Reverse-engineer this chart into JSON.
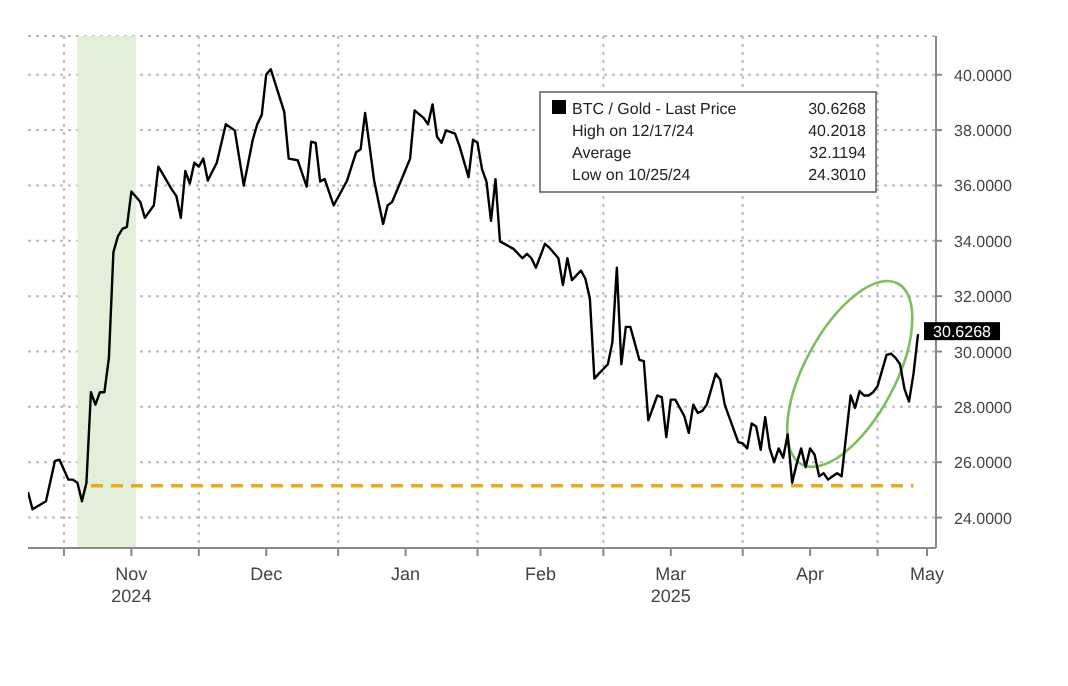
{
  "chart_data": {
    "type": "line",
    "x": [
      "2024-10-24",
      "2024-10-25",
      "2024-10-28",
      "2024-10-30",
      "2024-10-31",
      "2024-11-02",
      "2024-11-03",
      "2024-11-04",
      "2024-11-05",
      "2024-11-06",
      "2024-11-07",
      "2024-11-08",
      "2024-11-09",
      "2024-11-10",
      "2024-11-11",
      "2024-11-12",
      "2024-11-13",
      "2024-11-14",
      "2024-11-15",
      "2024-11-16",
      "2024-11-18",
      "2024-11-19",
      "2024-11-20",
      "2024-11-21",
      "2024-11-22",
      "2024-11-23",
      "2024-11-25",
      "2024-11-26",
      "2024-11-27",
      "2024-11-28",
      "2024-11-29",
      "2024-11-30",
      "2024-12-01",
      "2024-12-02",
      "2024-12-03",
      "2024-12-05",
      "2024-12-07",
      "2024-12-09",
      "2024-12-11",
      "2024-12-13",
      "2024-12-14",
      "2024-12-15",
      "2024-12-16",
      "2024-12-17",
      "2024-12-20",
      "2024-12-21",
      "2024-12-23",
      "2024-12-25",
      "2024-12-26",
      "2024-12-27",
      "2024-12-28",
      "2024-12-29",
      "2024-12-31",
      "2025-01-03",
      "2025-01-05",
      "2025-01-06",
      "2025-01-07",
      "2025-01-09",
      "2025-01-11",
      "2025-01-12",
      "2025-01-13",
      "2025-01-15",
      "2025-01-17",
      "2025-01-18",
      "2025-01-20",
      "2025-01-21",
      "2025-01-22",
      "2025-01-23",
      "2025-01-24",
      "2025-01-25",
      "2025-01-27",
      "2025-01-28",
      "2025-01-30",
      "2025-01-31",
      "2025-02-01",
      "2025-02-02",
      "2025-02-03",
      "2025-02-04",
      "2025-02-05",
      "2025-02-06",
      "2025-02-07",
      "2025-02-09",
      "2025-02-11",
      "2025-02-12",
      "2025-02-13",
      "2025-02-14",
      "2025-02-16",
      "2025-02-17",
      "2025-02-19",
      "2025-02-20",
      "2025-02-21",
      "2025-02-22",
      "2025-02-24",
      "2025-02-25",
      "2025-02-26",
      "2025-02-27",
      "2025-02-28",
      "2025-03-02",
      "2025-03-03",
      "2025-03-04",
      "2025-03-05",
      "2025-03-06",
      "2025-03-07",
      "2025-03-09",
      "2025-03-10",
      "2025-03-11",
      "2025-03-13",
      "2025-03-14",
      "2025-03-15",
      "2025-03-16",
      "2025-03-17",
      "2025-03-19",
      "2025-03-20",
      "2025-03-21",
      "2025-03-22",
      "2025-03-23",
      "2025-03-24",
      "2025-03-26",
      "2025-03-27",
      "2025-03-28",
      "2025-03-30",
      "2025-03-31",
      "2025-04-01",
      "2025-04-02",
      "2025-04-03",
      "2025-04-04",
      "2025-04-05",
      "2025-04-06",
      "2025-04-07",
      "2025-04-08",
      "2025-04-09",
      "2025-04-10",
      "2025-04-11",
      "2025-04-12",
      "2025-04-13",
      "2025-04-14",
      "2025-04-15",
      "2025-04-16",
      "2025-04-17",
      "2025-04-18",
      "2025-04-19",
      "2025-04-20",
      "2025-04-21",
      "2025-04-22",
      "2025-04-23",
      "2025-04-24",
      "2025-04-25",
      "2025-04-26",
      "2025-04-27",
      "2025-04-28",
      "2025-04-29",
      "2025-04-30",
      "2025-05-01",
      "2025-05-03",
      "2025-05-04",
      "2025-05-05",
      "2025-05-06",
      "2025-05-07",
      "2025-05-08",
      "2025-05-09",
      "2025-05-10"
    ],
    "series": [
      {
        "name": "BTC / Gold - Last Price",
        "color": "#000000",
        "values": [
          24.92,
          24.3,
          24.59,
          26.05,
          26.09,
          25.37,
          25.37,
          25.26,
          24.59,
          25.26,
          28.53,
          28.08,
          28.53,
          28.53,
          29.77,
          33.59,
          34.16,
          34.43,
          34.5,
          35.78,
          35.4,
          34.83,
          35.06,
          35.28,
          36.68,
          36.41,
          35.85,
          35.62,
          34.83,
          36.52,
          36.07,
          36.82,
          36.68,
          36.97,
          36.18,
          36.82,
          38.21,
          37.99,
          36.0,
          37.65,
          38.21,
          38.55,
          40.01,
          40.2,
          38.66,
          36.97,
          36.91,
          35.96,
          37.58,
          37.54,
          36.14,
          36.23,
          35.28,
          36.18,
          37.2,
          37.31,
          38.62,
          36.18,
          34.61,
          35.28,
          35.4,
          36.18,
          36.97,
          38.71,
          38.44,
          38.21,
          38.93,
          37.76,
          37.54,
          37.99,
          37.87,
          37.42,
          36.3,
          37.65,
          37.54,
          36.59,
          36.14,
          34.72,
          36.23,
          33.98,
          33.89,
          33.71,
          33.37,
          33.53,
          33.37,
          33.03,
          33.89,
          33.75,
          33.37,
          32.4,
          33.37,
          32.58,
          32.92,
          32.63,
          31.91,
          29.02,
          29.2,
          29.54,
          30.33,
          33.03,
          29.54,
          30.89,
          30.89,
          29.7,
          29.65,
          27.51,
          28.41,
          28.35,
          26.91,
          28.26,
          28.26,
          27.67,
          27.06,
          28.08,
          27.78,
          27.85,
          28.08,
          29.2,
          28.98,
          28.08,
          27.18,
          26.73,
          26.68,
          26.5,
          27.4,
          27.29,
          26.45,
          27.63,
          26.5,
          26.0,
          26.5,
          26.16,
          27.0,
          25.26,
          25.94,
          26.5,
          25.82,
          26.5,
          26.27,
          25.49,
          25.6,
          25.37,
          25.49,
          25.6,
          25.49,
          26.95,
          28.41,
          27.96,
          28.57,
          28.41,
          28.41,
          28.53,
          28.75,
          29.88,
          29.92,
          29.77,
          29.54,
          28.64,
          28.19,
          29.2,
          30.6268
        ],
        "value_labels": [
          null,
          null,
          null,
          null,
          null,
          null,
          null,
          null,
          null,
          null,
          null,
          null,
          null,
          null,
          null,
          null,
          null,
          null,
          null,
          null,
          null,
          null,
          null,
          null,
          null,
          null,
          null,
          null,
          null,
          null,
          null,
          null,
          null,
          null,
          null,
          null,
          null,
          null,
          null,
          null,
          null,
          null,
          null,
          null,
          null,
          null,
          null,
          null,
          null,
          null,
          null,
          null,
          null,
          null,
          null,
          null,
          null,
          null,
          null,
          null,
          null,
          null,
          null,
          null,
          null,
          null,
          null,
          null,
          null,
          null,
          null,
          null,
          null,
          null,
          null,
          null,
          null,
          null,
          null,
          null,
          null,
          null,
          null,
          null,
          null,
          null,
          null,
          null,
          null,
          null,
          null,
          null,
          null,
          null,
          null,
          null,
          null,
          null,
          null,
          null,
          null,
          null,
          null,
          null,
          null,
          null,
          null,
          null,
          null,
          null,
          null,
          null,
          null,
          null,
          null,
          null,
          null,
          null,
          null,
          null,
          null,
          null,
          null,
          null,
          null,
          null,
          null,
          null,
          null,
          null,
          null,
          null,
          null,
          null,
          null,
          null,
          null,
          null,
          null,
          null,
          null,
          null,
          null,
          null,
          null,
          null,
          null,
          null,
          null,
          null,
          null,
          null,
          null,
          null,
          null,
          null,
          null,
          null,
          null,
          null,
          "30.6268"
        ]
      },
      {
        "type": "line",
        "x": [
          "2024-11-07",
          "2025-05-09"
        ],
        "color": "#e8ad1c",
        "line_style": "dashed",
        "values": [
          25.15,
          25.15
        ]
      }
    ],
    "bands": [
      {
        "axis": "x",
        "from": "2024-11-04",
        "to": "2024-11-17",
        "color": "#e2f0d9"
      }
    ],
    "annotations": [
      "High on 12/17/24 40.2018",
      "Average 32.1194",
      "Low on 10/25/24 24.3010"
    ],
    "xlim": [
      "2024-10-24",
      "2025-05-14"
    ],
    "xticks": [
      {
        "value": "2024-11-01",
        "label": null
      },
      {
        "value": "2024-11-16",
        "label": "Nov\n2024"
      },
      {
        "value": "2024-12-01",
        "label": null
      },
      {
        "value": "2024-12-16",
        "label": "Dec"
      },
      {
        "value": "2025-01-01",
        "label": null
      },
      {
        "value": "2025-01-16",
        "label": "Jan"
      },
      {
        "value": "2025-02-01",
        "label": null
      },
      {
        "value": "2025-02-15",
        "label": "Feb"
      },
      {
        "value": "2025-03-01",
        "label": null
      },
      {
        "value": "2025-03-16",
        "label": "Mar\n2025"
      },
      {
        "value": "2025-04-01",
        "label": null
      },
      {
        "value": "2025-04-16",
        "label": "Apr"
      },
      {
        "value": "2025-05-01",
        "label": null
      },
      {
        "value": "2025-05-12",
        "label": "May"
      }
    ],
    "ylim": [
      22.9,
      41.4
    ],
    "yticks": [
      {
        "value": 24,
        "label": "24.0000"
      },
      {
        "value": 26,
        "label": "26.0000"
      },
      {
        "value": 28,
        "label": "28.0000"
      },
      {
        "value": 30,
        "label": "30.0000"
      },
      {
        "value": 32,
        "label": "32.0000"
      },
      {
        "value": 34,
        "label": "34.0000"
      },
      {
        "value": 36,
        "label": "36.0000"
      },
      {
        "value": 38,
        "label": "38.0000"
      },
      {
        "value": 40,
        "label": "40.0000"
      }
    ],
    "grid": true,
    "legend": "top right",
    "marker": "none"
  }
}
